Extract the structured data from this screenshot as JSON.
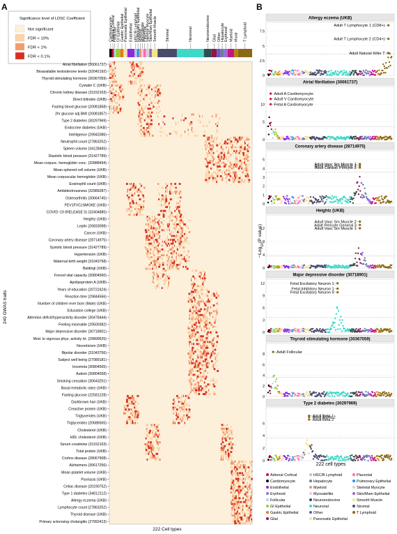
{
  "panel_a": {
    "label": "A",
    "legend_title": "Significance level of LDSC Coefficient",
    "legend_items": [
      {
        "label": "Not significant",
        "color": "#fdf0db"
      },
      {
        "label": "FDR < 10%",
        "color": "#fbd3a6"
      },
      {
        "label": "FDR < 1%",
        "color": "#f49b6b"
      },
      {
        "label": "FDR < 0.1%",
        "color": "#d7301f"
      }
    ],
    "ylabel": "240 GWAS traits",
    "xlabel": "222 Cell types",
    "groups": [
      {
        "name": "Cardiomyocyte",
        "n": 4,
        "color": "#000000"
      },
      {
        "name": "Adrenal Cortical",
        "n": 3,
        "color": "#c8102e"
      },
      {
        "name": "Follicular",
        "n": 3,
        "color": "#a8d8ea"
      },
      {
        "name": "GI Epithelial",
        "n": 7,
        "color": "#9acd32"
      },
      {
        "name": "Gastric Epithelial",
        "n": 5,
        "color": "#e07c24"
      },
      {
        "name": "Pancreatic Epithelial",
        "n": 6,
        "color": "#f5deb3"
      },
      {
        "name": "Endothelial",
        "n": 11,
        "color": "#8a2be2"
      },
      {
        "name": "HSC/B Lymphoid",
        "n": 4,
        "color": "#b0c4de"
      },
      {
        "name": "Pulmonary Epithelial",
        "n": 3,
        "color": "#1e90ff"
      },
      {
        "name": "Myeloid",
        "n": 4,
        "color": "#e9967a"
      },
      {
        "name": "Myosatellite",
        "n": 3,
        "color": "#f7c6d9"
      },
      {
        "name": "Placental",
        "n": 4,
        "color": "#ff69b4"
      },
      {
        "name": "Skeletal Myocyte",
        "n": 5,
        "color": "#d3d3d3"
      },
      {
        "name": "Skin/Mam Epithelial",
        "n": 4,
        "color": "#9467bd"
      },
      {
        "name": "Smooth Muscle",
        "n": 9,
        "color": "#f0e68c"
      },
      {
        "name": "Stromal",
        "n": 30,
        "color": "#4a4a6a"
      },
      {
        "name": "Neuronal",
        "n": 42,
        "color": "#3ed8c8"
      },
      {
        "name": "Neuroendocrine",
        "n": 12,
        "color": "#2f4f4f"
      },
      {
        "name": "Glial",
        "n": 8,
        "color": "#8b1a4a"
      },
      {
        "name": "Other",
        "n": 6,
        "color": "#6a5acd"
      },
      {
        "name": "Hepatocyte",
        "n": 5,
        "color": "#708090"
      },
      {
        "name": "Erythroid",
        "n": 6,
        "color": "#9370db"
      },
      {
        "name": "Myeloid",
        "n": 10,
        "color": "#c71585"
      },
      {
        "name": "Mural",
        "n": 6,
        "color": "#b8860b"
      },
      {
        "name": "T Lymphoid",
        "n": 22,
        "color": "#8b6914"
      }
    ],
    "traits": [
      "Atrial fibrillation (30061737)",
      "Bioavailable testosterone levels (32042192)",
      "Thyroid stimulating hormone (30367059)",
      "Cystatin C (UKB)",
      "Chronic kidney disease (31152163)",
      "Direct bilirubin (UKB)",
      "Fasting blood glucose (20081858)",
      "2hr glucose adj BMI (20081857)",
      "Type 2 diabetes (30297969)",
      "Endocrine diabetes (UKB)",
      "Intelligence (29942086)",
      "Neutrophil count (27863252)",
      "Spleen volume (34128465)",
      "Diastolic blood pressure (31427789)",
      "Mean corpusc. hemoglobin conc. (32888494)",
      "Mean sphered cell volume (UKB)",
      "Mean corpuscular hemoglobin (UKB)",
      "Eosinophil count (UKB)",
      "Ambidextrousness (32989287)",
      "Osteoarthritis (30664745)",
      "FEV1FVCzSMOKE (UKB)",
      "COVID−19 (RELEASE 5) (32404885)",
      "Heightz (UKB)",
      "Leptin (26833098)",
      "Cancer (UKB)",
      "Coronary artery disease (28714975)",
      "Systolic blood pressure (31427789)",
      "Hypertension (UKB)",
      "Maternal birth weight (31043758)",
      "Baldingl (UKB)",
      "Forced vital capacity (30804560)",
      "Apolipoprotein A (UKB)",
      "Years of education (20722424)",
      "Reaction time (29844566)",
      "Number of children ever born (Male) (UKB)",
      "Education college (UKB)",
      "Attention deficit/hyperactivity disorder (30478444)",
      "Feeling miserable (29500382)",
      "Major depressive disorder (30718901)",
      "Mod. to vigorous phys. activity lvl. (29899525)",
      "Neuroticism (UKB)",
      "Bipolar disorder (31043756)",
      "Subject well being (27089181)",
      "Insomnia (30804565)",
      "Autism (30804558)",
      "Smoking cessation (30643251)",
      "Basal metabolic ratez (UKB)",
      "Fasting glucose (22581228)",
      "Darkbrown hair (UKB)",
      "Creactive protein (UKB)",
      "Triglycerides (UKB)",
      "Triglycerides (20686565)",
      "Cholesterol (UKB)",
      "HDL cholesterol (UKB)",
      "Serum creatinine (31152163)",
      "Total protein (UKB)",
      "Crohns disease (28067908)",
      "Alzheimers (30617256)",
      "Mean platelet volume (UKB)",
      "Psoriasis (UKB)",
      "Celiac disease (20190752)",
      "Type 1 diabetes (34012112)",
      "Allergy eczema (UKB)",
      "Lymphocyte count (27863252)",
      "Thyroid disease (UKB)",
      "Primary sclerosing cholangitis (27992413)"
    ]
  },
  "panel_b": {
    "label": "B",
    "ylabel": "−Log10(P value)",
    "xlabel": "222 cell types",
    "legend": [
      {
        "label": "Adrenal Cortical",
        "color": "#c8102e"
      },
      {
        "label": "HSC/B Lymphoid",
        "color": "#b0c4de"
      },
      {
        "label": "Placental",
        "color": "#ff69b4"
      },
      {
        "label": "Cardiomyocyte",
        "color": "#000000"
      },
      {
        "label": "Hepatocyte",
        "color": "#708090"
      },
      {
        "label": "Pulmonary Epithelial",
        "color": "#1e90ff"
      },
      {
        "label": "Endothelial",
        "color": "#8a2be2"
      },
      {
        "label": "Myeloid",
        "color": "#e9967a"
      },
      {
        "label": "Skeletal Myocyte",
        "color": "#d3d3d3"
      },
      {
        "label": "Erythroid",
        "color": "#9370db"
      },
      {
        "label": "Myosatellite",
        "color": "#f7c6d9"
      },
      {
        "label": "Skin/Mam Epithelial",
        "color": "#9467bd"
      },
      {
        "label": "Follicular",
        "color": "#a8d8ea"
      },
      {
        "label": "Neuroendocrine",
        "color": "#2f4f4f"
      },
      {
        "label": "Smooth Muscle",
        "color": "#f0e68c"
      },
      {
        "label": "GI Epithelial",
        "color": "#9acd32"
      },
      {
        "label": "Neuronal",
        "color": "#3ed8c8"
      },
      {
        "label": "Stromal",
        "color": "#4a4a6a"
      },
      {
        "label": "Gastric Epithelial",
        "color": "#e07c24"
      },
      {
        "label": "Other",
        "color": "#6a5acd"
      },
      {
        "label": "T Lymphoid",
        "color": "#8b6914"
      },
      {
        "label": "Glial",
        "color": "#8b1a4a"
      },
      {
        "label": "Pancreatic Epithelial",
        "color": "#f5deb3"
      }
    ]
  },
  "chart_data": [
    {
      "type": "heatmap",
      "xlabel": "222 Cell types",
      "ylabel": "240 GWAS traits",
      "rows": 240,
      "cols": 222,
      "levels": [
        "Not significant",
        "FDR < 10%",
        "FDR < 1%",
        "FDR < 0.1%"
      ]
    },
    {
      "type": "scatter",
      "title": "Allergy eczema (UKB)",
      "ylim": [
        0,
        9
      ],
      "yticks": [
        0,
        2.5,
        5,
        7.5
      ],
      "threshold": 3.6,
      "annotations": [
        {
          "text": "Adult T Lymphocyte 1 (CD8+)",
          "y": 8.5
        },
        {
          "text": "Adult T Lymphocyte 2 (CD4+)",
          "y": 6.2
        },
        {
          "text": "Adult Natural Killer T",
          "y": 3.8
        }
      ]
    },
    {
      "type": "scatter",
      "title": "Atrial fibrillation (30061737)",
      "ylim": [
        0,
        15
      ],
      "yticks": [
        0,
        5,
        10
      ],
      "threshold": 3.6,
      "annotations": [
        {
          "text": "Adult A Cardiomyocyte",
          "y": 13
        },
        {
          "text": "Adult V Cardiomyocyte",
          "y": 11.5
        },
        {
          "text": "Fetal A Cardiomyocyte",
          "y": 10
        }
      ]
    },
    {
      "type": "scatter",
      "title": "Coronary artery disease (28714975)",
      "ylim": [
        0,
        6
      ],
      "yticks": [
        0,
        1,
        2,
        3,
        4,
        5
      ],
      "threshold": 3.6,
      "annotations": [
        {
          "text": "Adult Vasc Sm Muscle 1",
          "y": 4.5
        },
        {
          "text": "Adult Vasc Sm Muscle 2",
          "y": 4.3
        },
        {
          "text": "Adult Cardiac Pericyte 2",
          "y": 4.1
        }
      ]
    },
    {
      "type": "scatter",
      "title": "Heightz (UKB)",
      "ylim": [
        0,
        16
      ],
      "yticks": [
        0,
        4,
        8,
        12
      ],
      "threshold": 3.6,
      "annotations": [
        {
          "text": "Adult Vasc Sm Muscle 2",
          "y": 14
        },
        {
          "text": "Adult Pericyte General 3",
          "y": 13
        },
        {
          "text": "Adult Vasc Sm Muscle 1",
          "y": 12
        }
      ]
    },
    {
      "type": "scatter",
      "title": "Major depressive disorder (30718901)",
      "ylim": [
        0,
        13
      ],
      "yticks": [
        0,
        3,
        6,
        9,
        12
      ],
      "threshold": 3.6,
      "annotations": [
        {
          "text": "Fetal Excitatory Neuron 1",
          "y": 12
        },
        {
          "text": "Fetal Inhibitory Neuron 1",
          "y": 10.7
        },
        {
          "text": "Fetal Excitatory Neuron 9",
          "y": 9.8
        }
      ]
    },
    {
      "type": "scatter",
      "title": "Thyroid stimulating hormone (30367059)",
      "ylim": [
        0,
        10
      ],
      "yticks": [
        0,
        2,
        4,
        6,
        8
      ],
      "threshold": 3.6,
      "annotations": [
        {
          "text": "Adult Follicular",
          "y": 8.4
        }
      ]
    },
    {
      "type": "scatter",
      "title": "Type 2 diabetes (30297969)",
      "ylim": [
        0,
        8.5
      ],
      "yticks": [
        0,
        2,
        4,
        6
      ],
      "threshold": 3.6,
      "annotations": [
        {
          "text": "Adult Beta 1",
          "y": 7.2
        },
        {
          "text": "Adult Alpha 2",
          "y": 7.0
        },
        {
          "text": "Adult Beta 2",
          "y": 6.6
        }
      ]
    }
  ]
}
